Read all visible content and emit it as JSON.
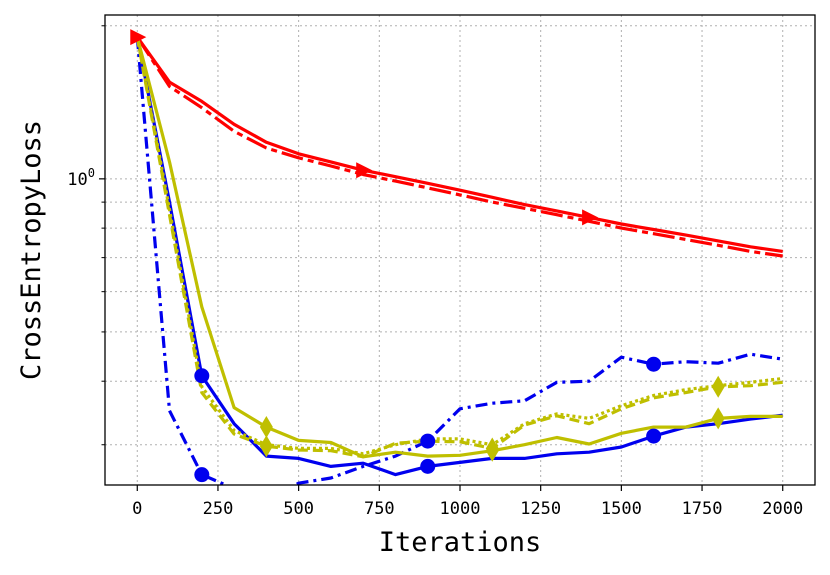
{
  "chart_data": {
    "type": "line",
    "xlabel": "Iterations",
    "ylabel": "CrossEntropyLoss",
    "xlim": [
      -100,
      2100
    ],
    "ylim": [
      0.25,
      2.1
    ],
    "yscale": "log",
    "grid": true,
    "x_ticks": [
      0,
      250,
      500,
      750,
      1000,
      1250,
      1500,
      1750,
      2000
    ],
    "x_tick_labels": [
      "0",
      "250",
      "500",
      "750",
      "1000",
      "1250",
      "1500",
      "1750",
      "2000"
    ],
    "y_major_ticks": [
      1.0
    ],
    "y_major_tick_labels": [
      "10",
      "0"
    ],
    "y_minor_ticks": [
      0.3,
      0.4,
      0.5,
      0.6,
      0.7,
      0.8,
      0.9,
      2.0
    ],
    "series": [
      {
        "color": "#ff0000",
        "dash": "solid",
        "marker": "triangle-right",
        "marker_every": [
          0,
          7,
          14
        ],
        "x": [
          0,
          100,
          200,
          300,
          400,
          500,
          600,
          700,
          800,
          900,
          1000,
          1100,
          1200,
          1300,
          1400,
          1500,
          1600,
          1700,
          1800,
          1900,
          2000
        ],
        "y": [
          1.9,
          1.55,
          1.42,
          1.28,
          1.18,
          1.12,
          1.08,
          1.04,
          1.01,
          0.98,
          0.95,
          0.92,
          0.89,
          0.865,
          0.84,
          0.815,
          0.795,
          0.775,
          0.755,
          0.735,
          0.72
        ]
      },
      {
        "color": "#ff0000",
        "dash": "longdash",
        "marker": "none",
        "marker_every": [],
        "x": [
          0,
          100,
          200,
          300,
          400,
          500,
          600,
          700,
          800,
          900,
          1000,
          1100,
          1200,
          1300,
          1400,
          1500,
          1600,
          1700,
          1800,
          1900,
          2000
        ],
        "y": [
          1.9,
          1.52,
          1.38,
          1.24,
          1.15,
          1.1,
          1.06,
          1.02,
          0.99,
          0.96,
          0.93,
          0.9,
          0.875,
          0.85,
          0.825,
          0.8,
          0.78,
          0.76,
          0.74,
          0.72,
          0.705
        ]
      },
      {
        "color": "#0000ee",
        "dash": "solid",
        "marker": "circle",
        "marker_every": [
          2,
          9,
          16
        ],
        "x": [
          0,
          100,
          200,
          300,
          400,
          500,
          600,
          700,
          800,
          900,
          1000,
          1100,
          1200,
          1300,
          1400,
          1500,
          1600,
          1700,
          1800,
          1900,
          2000
        ],
        "y": [
          1.9,
          0.9,
          0.41,
          0.33,
          0.285,
          0.282,
          0.272,
          0.276,
          0.262,
          0.272,
          0.277,
          0.282,
          0.282,
          0.288,
          0.29,
          0.297,
          0.312,
          0.325,
          0.33,
          0.337,
          0.343
        ]
      },
      {
        "color": "#0000ee",
        "dash": "dashdot",
        "marker": "circle",
        "marker_every": [
          2,
          9,
          16
        ],
        "x": [
          0,
          100,
          200,
          300,
          400,
          500,
          600,
          700,
          800,
          900,
          1000,
          1100,
          1200,
          1300,
          1400,
          1500,
          1600,
          1700,
          1800,
          1900,
          2000
        ],
        "y": [
          1.9,
          0.35,
          0.262,
          0.246,
          0.234,
          0.252,
          0.258,
          0.272,
          0.285,
          0.305,
          0.353,
          0.362,
          0.366,
          0.398,
          0.4,
          0.446,
          0.432,
          0.437,
          0.434,
          0.452,
          0.442
        ]
      },
      {
        "color": "#bfbf00",
        "dash": "solid",
        "marker": "diamond",
        "marker_every": [
          4,
          11,
          18
        ],
        "x": [
          0,
          100,
          200,
          300,
          400,
          500,
          600,
          700,
          800,
          900,
          1000,
          1100,
          1200,
          1300,
          1400,
          1500,
          1600,
          1700,
          1800,
          1900,
          2000
        ],
        "y": [
          1.9,
          1.08,
          0.56,
          0.355,
          0.325,
          0.306,
          0.303,
          0.284,
          0.29,
          0.285,
          0.286,
          0.292,
          0.3,
          0.31,
          0.301,
          0.316,
          0.325,
          0.325,
          0.338,
          0.341,
          0.341
        ]
      },
      {
        "color": "#bfbf00",
        "dash": "dashed",
        "marker": "diamond",
        "marker_every": [
          4,
          11,
          18
        ],
        "x": [
          0,
          100,
          200,
          300,
          400,
          500,
          600,
          700,
          800,
          900,
          1000,
          1100,
          1200,
          1300,
          1400,
          1500,
          1600,
          1700,
          1800,
          1900,
          2000
        ],
        "y": [
          1.9,
          0.85,
          0.38,
          0.315,
          0.298,
          0.293,
          0.292,
          0.284,
          0.302,
          0.305,
          0.304,
          0.295,
          0.328,
          0.342,
          0.33,
          0.353,
          0.371,
          0.38,
          0.39,
          0.392,
          0.398
        ]
      },
      {
        "color": "#bfbf00",
        "dash": "dotted",
        "marker": "none",
        "marker_every": [],
        "x": [
          0,
          100,
          200,
          300,
          400,
          500,
          600,
          700,
          800,
          900,
          1000,
          1100,
          1200,
          1300,
          1400,
          1500,
          1600,
          1700,
          1800,
          1900,
          2000
        ],
        "y": [
          1.9,
          0.87,
          0.39,
          0.32,
          0.3,
          0.295,
          0.295,
          0.288,
          0.3,
          0.308,
          0.308,
          0.3,
          0.33,
          0.345,
          0.338,
          0.358,
          0.375,
          0.385,
          0.392,
          0.398,
          0.405
        ]
      }
    ]
  }
}
